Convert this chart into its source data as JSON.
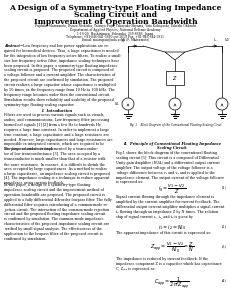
{
  "title_line1": "A Design of a Symmetry-type Floating Impedance",
  "title_line2": "Scaling Circuit and",
  "title_line3": "Improvement of Operation Bandwidth",
  "authors": "Fujihiko Matsumoto, Ryuzo Nishioka, Tatsuya Fujii, Takayuki Ohyama, Yuta Kobayashi, Takeshi Ohbuchi",
  "affiliation1": "Department of Applied Physics, National Defense Academy",
  "affiliation2": "1-10-20, Hashirimizu, Yokosuka, 239-8686, Japan",
  "affiliation3": "Telephone: +81-046-841-3810 ext 3659 Fax: +81-046-844-5911",
  "affiliation4": "Email: matsupan@nda.ac.jp (F. Matsumoto)",
  "fig_caption": "Fig. 1.   Block Diagram of the Conventional Floating Scaling Ciruit",
  "eq1_num": "(1)",
  "eq2_num": "(2)",
  "eq3_num": "(3)",
  "eq4_num": "(4)",
  "background_color": "#ffffff",
  "text_color": "#000000",
  "title_fontsize": 5.5,
  "body_fontsize": 2.6,
  "small_fontsize": 2.4,
  "col_split": 113
}
